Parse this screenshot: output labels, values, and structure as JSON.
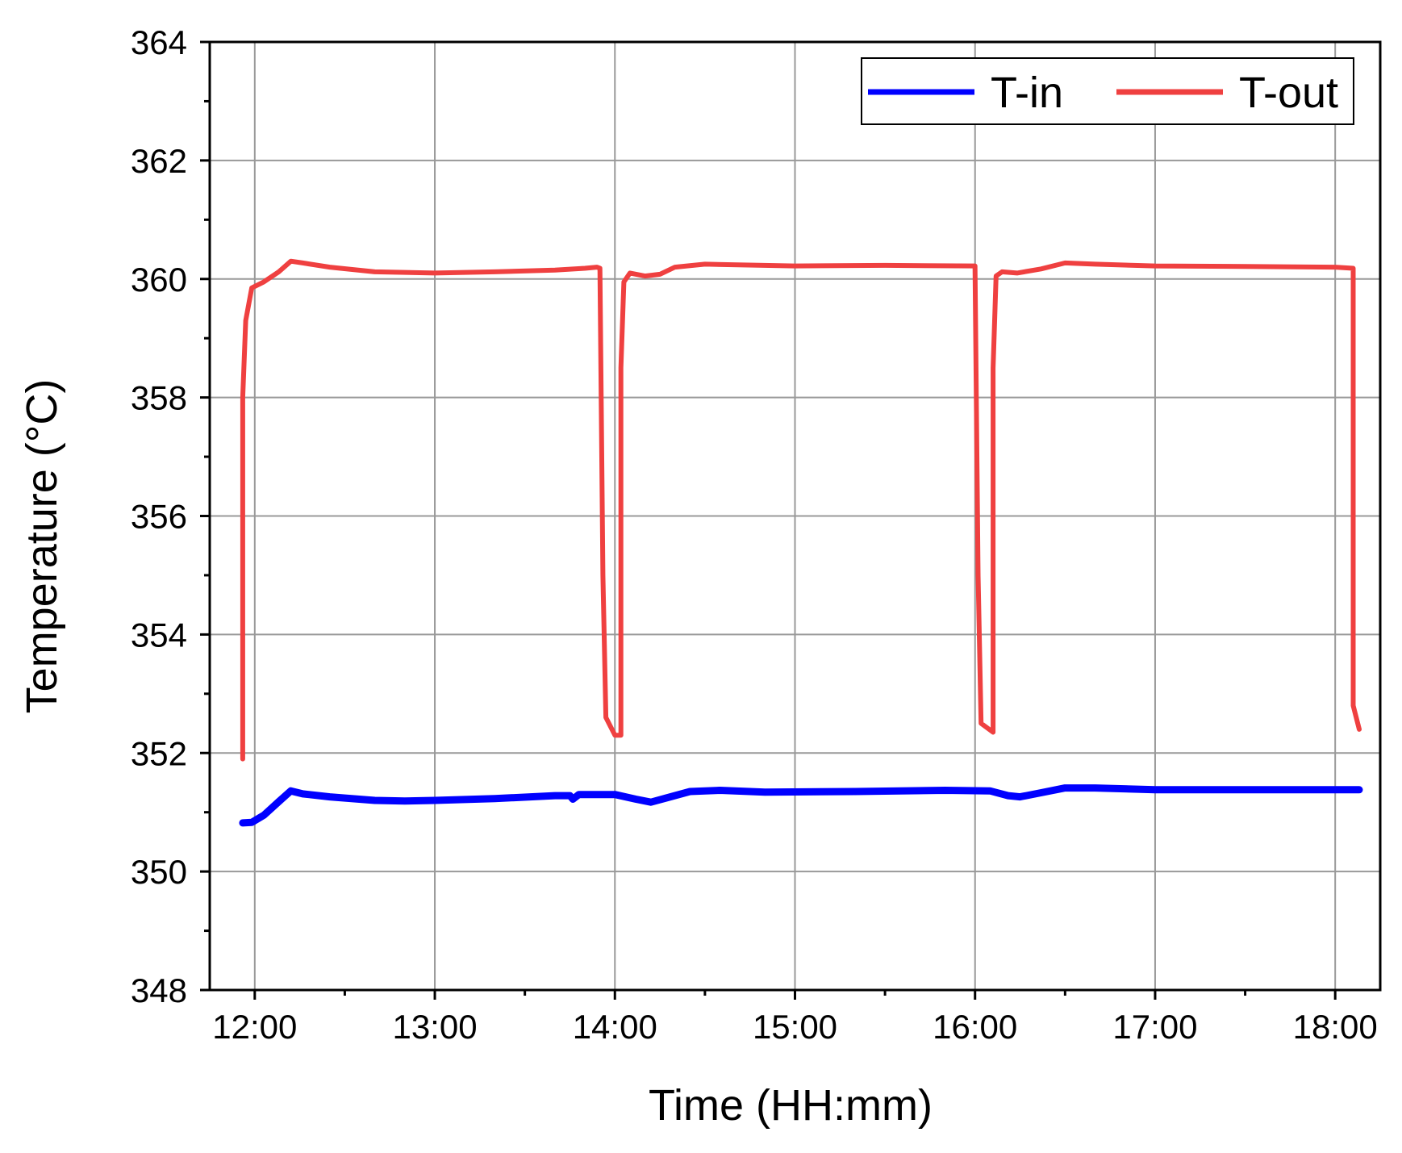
{
  "chart_data": {
    "type": "line",
    "title": "",
    "xlabel": "Time (HH:mm)",
    "ylabel": "Temperature (°C)",
    "xlim": [
      "11:45",
      "18:15"
    ],
    "ylim": [
      348,
      364
    ],
    "x_ticks": [
      "12:00",
      "13:00",
      "14:00",
      "15:00",
      "16:00",
      "17:00",
      "18:00"
    ],
    "y_ticks": [
      348,
      350,
      352,
      354,
      356,
      358,
      360,
      362,
      364
    ],
    "grid": true,
    "legend_position": "top-right",
    "series": [
      {
        "name": "T-in",
        "color": "#0000ff",
        "points": [
          [
            "11:56",
            350.82
          ],
          [
            "11:59",
            350.83
          ],
          [
            "12:03",
            350.95
          ],
          [
            "12:08",
            351.18
          ],
          [
            "12:12",
            351.36
          ],
          [
            "12:16",
            351.31
          ],
          [
            "12:25",
            351.26
          ],
          [
            "12:40",
            351.2
          ],
          [
            "12:50",
            351.19
          ],
          [
            "13:00",
            351.2
          ],
          [
            "13:20",
            351.23
          ],
          [
            "13:40",
            351.28
          ],
          [
            "13:45",
            351.28
          ],
          [
            "13:46",
            351.22
          ],
          [
            "13:48",
            351.3
          ],
          [
            "14:00",
            351.3
          ],
          [
            "14:07",
            351.22
          ],
          [
            "14:12",
            351.17
          ],
          [
            "14:17",
            351.24
          ],
          [
            "14:25",
            351.35
          ],
          [
            "14:35",
            351.37
          ],
          [
            "14:50",
            351.34
          ],
          [
            "15:20",
            351.35
          ],
          [
            "15:50",
            351.37
          ],
          [
            "16:05",
            351.36
          ],
          [
            "16:11",
            351.28
          ],
          [
            "16:15",
            351.26
          ],
          [
            "16:22",
            351.33
          ],
          [
            "16:30",
            351.41
          ],
          [
            "16:40",
            351.41
          ],
          [
            "17:00",
            351.38
          ],
          [
            "17:30",
            351.38
          ],
          [
            "18:00",
            351.38
          ],
          [
            "18:08",
            351.38
          ]
        ]
      },
      {
        "name": "T-out",
        "color": "#ef4040",
        "points": [
          [
            "11:56",
            351.9
          ],
          [
            "11:56",
            358.0
          ],
          [
            "11:57",
            359.3
          ],
          [
            "11:59",
            359.85
          ],
          [
            "12:03",
            359.95
          ],
          [
            "12:08",
            360.12
          ],
          [
            "12:12",
            360.3
          ],
          [
            "12:16",
            360.27
          ],
          [
            "12:25",
            360.2
          ],
          [
            "12:40",
            360.12
          ],
          [
            "13:00",
            360.1
          ],
          [
            "13:20",
            360.12
          ],
          [
            "13:40",
            360.15
          ],
          [
            "13:50",
            360.18
          ],
          [
            "13:54",
            360.2
          ],
          [
            "13:55",
            360.18
          ],
          [
            "13:56",
            355.0
          ],
          [
            "13:57",
            352.6
          ],
          [
            "14:00",
            352.3
          ],
          [
            "14:02",
            352.3
          ],
          [
            "14:02",
            358.5
          ],
          [
            "14:03",
            359.95
          ],
          [
            "14:05",
            360.1
          ],
          [
            "14:10",
            360.05
          ],
          [
            "14:15",
            360.08
          ],
          [
            "14:20",
            360.2
          ],
          [
            "14:30",
            360.25
          ],
          [
            "15:00",
            360.22
          ],
          [
            "15:30",
            360.23
          ],
          [
            "16:00",
            360.22
          ],
          [
            "16:00",
            360.18
          ],
          [
            "16:01",
            355.0
          ],
          [
            "16:02",
            352.5
          ],
          [
            "16:06",
            352.35
          ],
          [
            "16:06",
            358.5
          ],
          [
            "16:07",
            360.05
          ],
          [
            "16:09",
            360.12
          ],
          [
            "16:14",
            360.1
          ],
          [
            "16:22",
            360.17
          ],
          [
            "16:30",
            360.27
          ],
          [
            "16:40",
            360.25
          ],
          [
            "17:00",
            360.22
          ],
          [
            "17:30",
            360.21
          ],
          [
            "18:00",
            360.2
          ],
          [
            "18:06",
            360.18
          ],
          [
            "18:06",
            357.5
          ],
          [
            "18:06",
            352.8
          ],
          [
            "18:08",
            352.4
          ]
        ]
      }
    ]
  }
}
